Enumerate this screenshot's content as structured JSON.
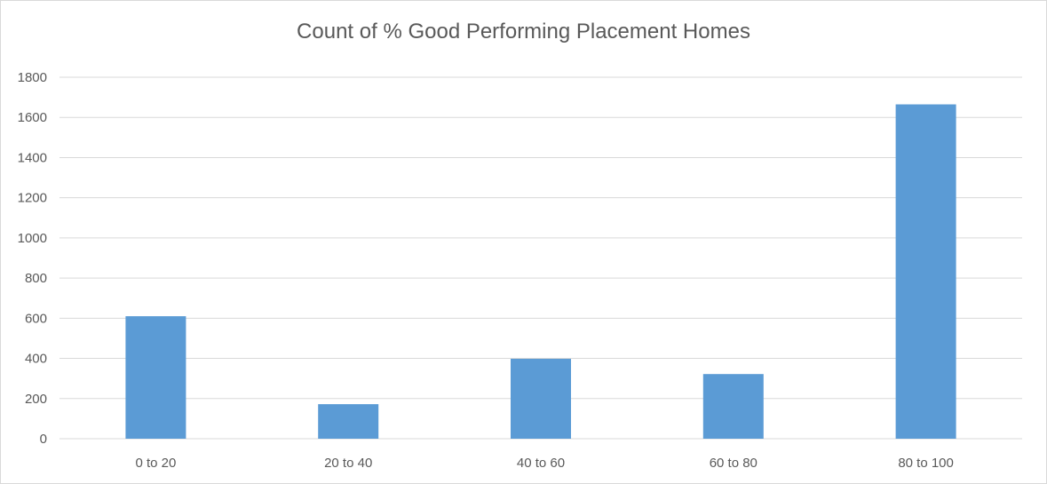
{
  "chart_data": {
    "type": "bar",
    "title": "Count of % Good Performing Placement Homes",
    "categories": [
      "0 to 20",
      "20 to 40",
      "40 to 60",
      "60 to 80",
      "80 to 100"
    ],
    "values": [
      610,
      172,
      398,
      322,
      1665
    ],
    "ylim": [
      0,
      1800
    ],
    "yticks": [
      0,
      200,
      400,
      600,
      800,
      1000,
      1200,
      1400,
      1600,
      1800
    ],
    "grid": true,
    "bar_color": "#5b9bd5",
    "grid_color": "#d9d9d9"
  }
}
